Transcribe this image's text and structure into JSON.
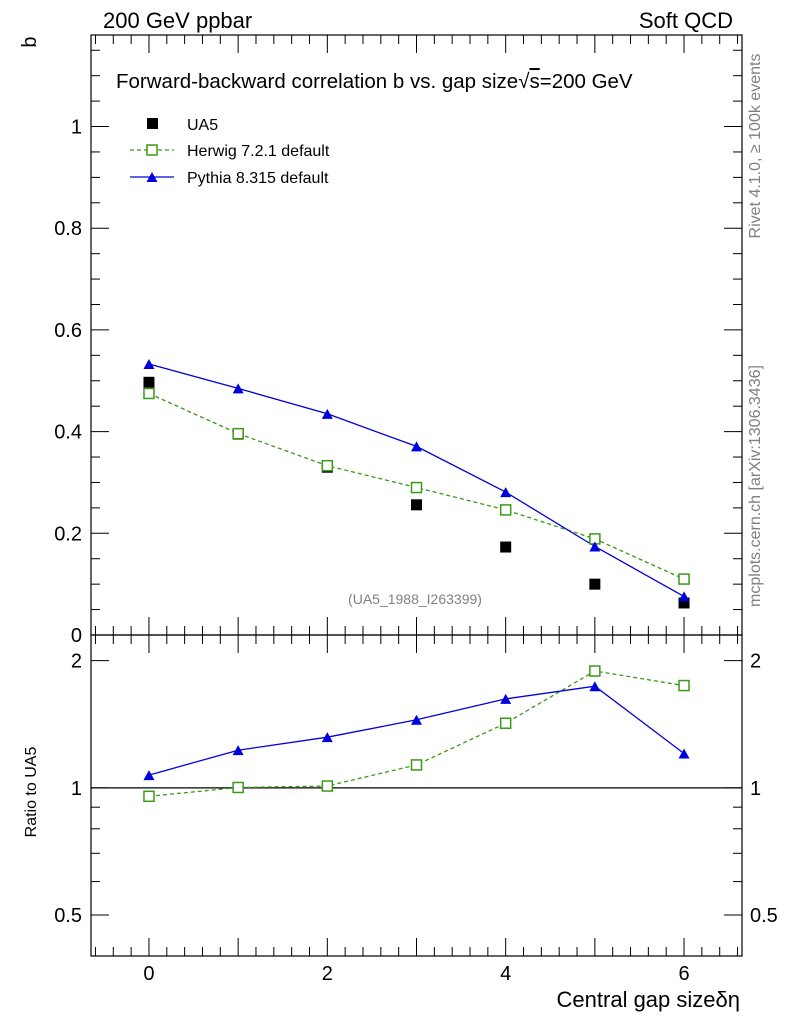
{
  "header": {
    "left": "200 GeV ppbar",
    "right": "Soft QCD"
  },
  "side_text": {
    "rivet": "Rivet 4.1.0, ≥ 100k events",
    "mcplots": "mcplots.cern.ch [arXiv:1306.3436]"
  },
  "colors": {
    "data": "#000000",
    "herwig": "#3a9a17",
    "pythia": "#0000dd"
  },
  "chart_data": [
    {
      "type": "scatter",
      "panel": "main",
      "title_parts": [
        "Forward-backward correlation b vs. gap size",
        "√",
        "s",
        "=200 GeV"
      ],
      "analysis_id": "(UA5_1988_I263399)",
      "ylabel": "b",
      "xlabel": "",
      "xlim": [
        -0.65,
        6.65
      ],
      "ylim": [
        0,
        1.18
      ],
      "yticks": [
        0,
        0.2,
        0.4,
        0.6,
        0.8,
        1
      ],
      "ytick_labels": [
        "0",
        "0.2",
        "0.4",
        "0.6",
        "0.8",
        "1"
      ],
      "legend_position": "top-left",
      "legend": [
        "UA5",
        "Herwig 7.2.1 default",
        "Pythia 8.315 default"
      ],
      "x": [
        0,
        1,
        2,
        3,
        4,
        5,
        6
      ],
      "series": [
        {
          "name": "UA5",
          "style": "square-filled",
          "values": [
            0.497,
            0.395,
            0.33,
            0.256,
            0.173,
            0.1,
            0.063
          ]
        },
        {
          "name": "Herwig 7.2.1 default",
          "style": "square-open-dashed",
          "values": [
            0.475,
            0.396,
            0.333,
            0.29,
            0.246,
            0.189,
            0.11
          ]
        },
        {
          "name": "Pythia 8.315 default",
          "style": "triangle-solid",
          "values": [
            0.533,
            0.485,
            0.435,
            0.371,
            0.281,
            0.174,
            0.076
          ]
        }
      ]
    },
    {
      "type": "line",
      "panel": "ratio",
      "ylabel": "Ratio to UA5",
      "xlabel": "Central gap sizeδη",
      "xlim": [
        -0.65,
        6.65
      ],
      "ylim": [
        0.4,
        2.3
      ],
      "yscale": "log",
      "yticks": [
        0.5,
        1,
        2
      ],
      "ytick_labels": [
        "0.5",
        "1",
        "2"
      ],
      "xticks": [
        0,
        2,
        4,
        6
      ],
      "xtick_labels": [
        "0",
        "2",
        "4",
        "6"
      ],
      "x": [
        0,
        1,
        2,
        3,
        4,
        5,
        6
      ],
      "reference": 1,
      "series": [
        {
          "name": "Herwig 7.2.1 default",
          "style": "square-open-dashed",
          "values": [
            0.955,
            1.002,
            1.01,
            1.133,
            1.422,
            1.89,
            1.746
          ]
        },
        {
          "name": "Pythia 8.315 default",
          "style": "triangle-solid",
          "values": [
            1.072,
            1.228,
            1.318,
            1.449,
            1.624,
            1.74,
            1.206
          ]
        }
      ]
    }
  ]
}
